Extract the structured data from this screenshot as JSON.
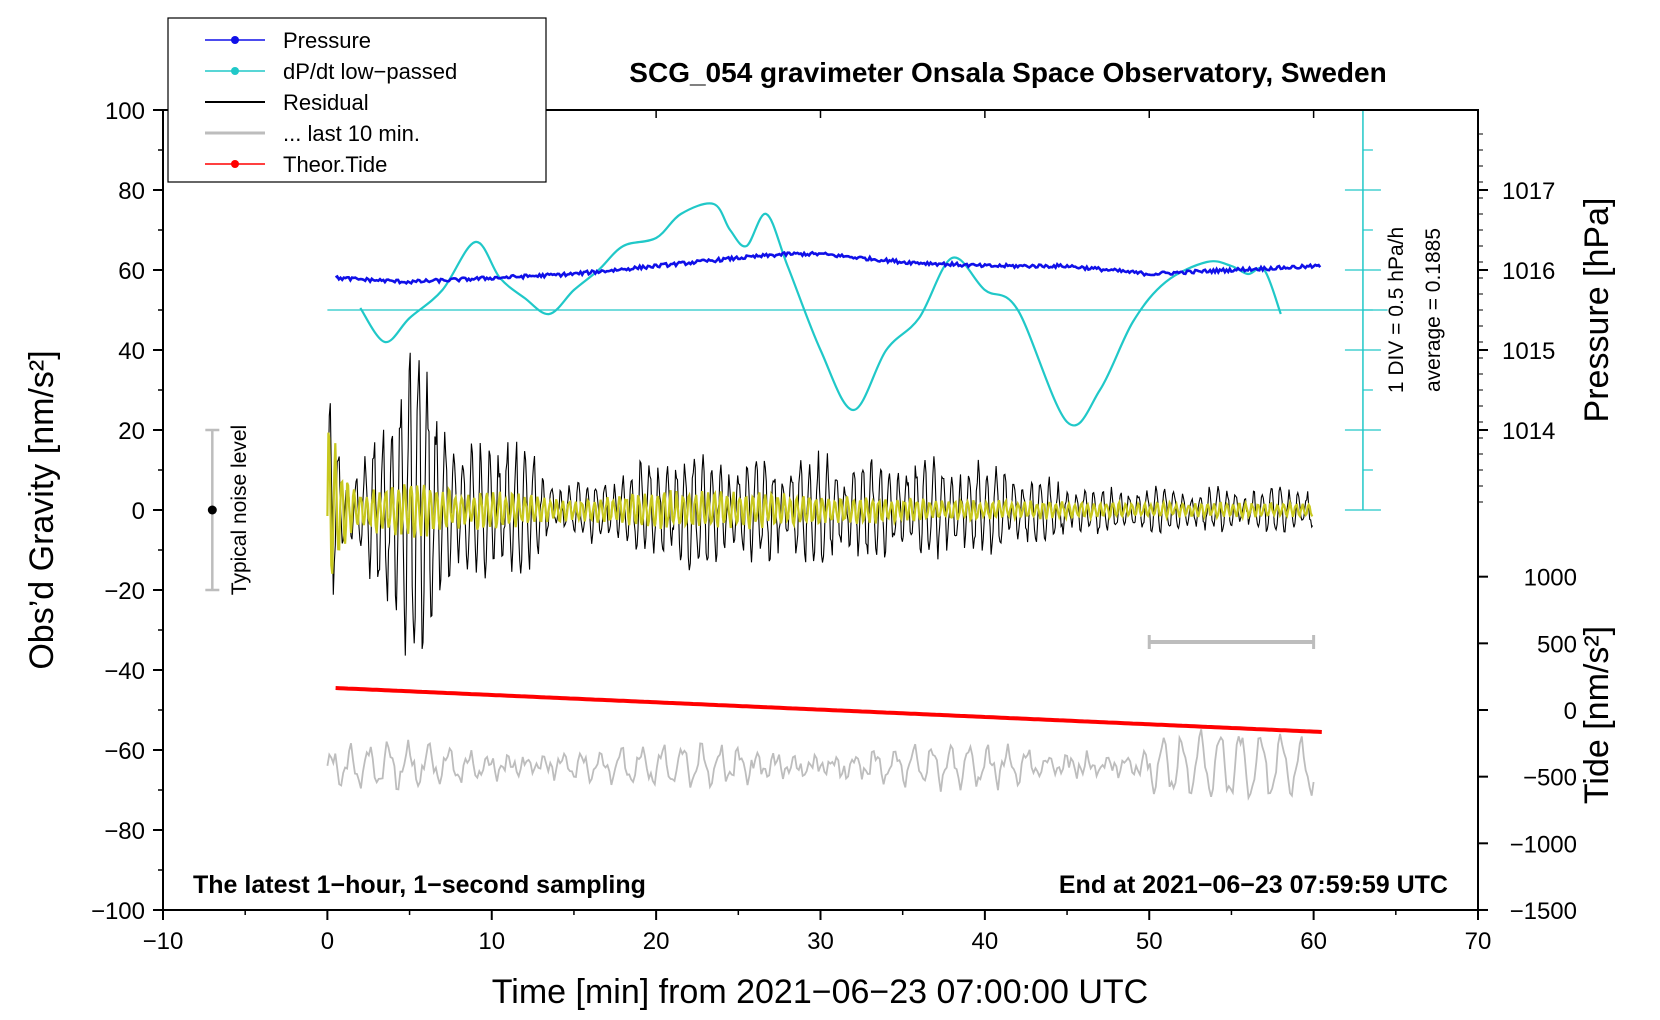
{
  "chart_data": {
    "type": "line",
    "title": "SCG_054 gravimeter Onsala Space Observatory, Sweden",
    "xlabel": "Time [min] from 2021−06−23 07:00:00 UTC",
    "ylabel": "Obs’d Gravity [nm/s²]",
    "ylabel_right_top": "Pressure [hPa]",
    "ylabel_right_bottom": "Tide [nm/s²]",
    "xlim": [
      -10,
      70
    ],
    "ylim": [
      -100,
      100
    ],
    "x_ticks": [
      "−10",
      "0",
      "10",
      "20",
      "30",
      "40",
      "50",
      "60",
      "70"
    ],
    "x_tick_values": [
      -10,
      0,
      10,
      20,
      30,
      40,
      50,
      60,
      70
    ],
    "y_ticks": [
      "−100",
      "−80",
      "−60",
      "−40",
      "−20",
      "0",
      "20",
      "40",
      "60",
      "80",
      "100"
    ],
    "y_tick_values": [
      -100,
      -80,
      -60,
      -40,
      -20,
      0,
      20,
      40,
      60,
      80,
      100
    ],
    "pressure_ticks": [
      "1014",
      "1015",
      "1016",
      "1017"
    ],
    "pressure_tick_values": [
      1014,
      1015,
      1016,
      1017
    ],
    "pressure_axis_map": {
      "gravity_at_1014": 20,
      "gravity_per_hPa": 20
    },
    "tide_ticks": [
      "1000",
      "500",
      "0",
      "−500",
      "−1000",
      "−1500"
    ],
    "tide_tick_values": [
      1000,
      500,
      0,
      -500,
      -1000,
      -1500
    ],
    "tide_axis_map": {
      "gravity_at_0": -50,
      "gravity_per_1000": 33.33
    },
    "legend": [
      {
        "label": "Pressure",
        "color": "#1010e8",
        "marker": true
      },
      {
        "label": "dP/dt low−passed",
        "color": "#20c8c8",
        "marker": true
      },
      {
        "label": "Residual",
        "color": "#000000",
        "marker": false
      },
      {
        "label": "... last 10 min.",
        "color": "#bdbdbd",
        "marker": false
      },
      {
        "label": "Theor.Tide",
        "color": "#ff0000",
        "marker": true
      }
    ],
    "annotations": {
      "bottom_left": "The latest 1−hour, 1−second sampling",
      "bottom_right": "End at 2021−06−23 07:59:59 UTC",
      "noise_label": "Typical noise level",
      "div_label": "1 DIV = 0.5 hPa/h",
      "average_label": "average = 0.1885"
    },
    "noise_bar": {
      "x": -7,
      "y_min": -20,
      "y_max": 20,
      "center": 0
    },
    "dpdt_baseline_gravity": 50,
    "dpdt_scale_bar": {
      "x": 63,
      "y_min": 0,
      "y_max": 100
    },
    "gray_scale_bar": {
      "x_min": 50,
      "x_max": 60,
      "y": -33
    },
    "series": [
      {
        "name": "Pressure",
        "unit": "hPa",
        "color": "#1010e8",
        "x": [
          0.5,
          5,
          10,
          15,
          20,
          25,
          28,
          30,
          35,
          40,
          45,
          50,
          55,
          60.5
        ],
        "values": [
          1015.9,
          1015.85,
          1015.9,
          1015.95,
          1016.05,
          1016.15,
          1016.2,
          1016.2,
          1016.1,
          1016.05,
          1016.05,
          1015.95,
          1016.0,
          1016.05
        ]
      },
      {
        "name": "dP/dt low−passed",
        "unit": "gravity-equivalent",
        "color": "#20c8c8",
        "x": [
          2,
          3.5,
          5,
          7,
          9,
          10.5,
          12,
          13.5,
          15,
          16.5,
          18,
          20,
          21.5,
          23.5,
          24.5,
          25.5,
          26.7,
          28,
          30,
          32,
          34,
          36,
          38,
          40,
          42,
          45,
          47,
          49,
          51,
          53.5,
          55,
          56,
          57,
          58
        ],
        "values": [
          50.5,
          42,
          48,
          55,
          67,
          58,
          53,
          49,
          55,
          60,
          66,
          68,
          74,
          76.5,
          70,
          66,
          74,
          61,
          40,
          25,
          40,
          48,
          63,
          55,
          50,
          22,
          30,
          47,
          57,
          62,
          61,
          59,
          60,
          49
        ]
      },
      {
        "name": "Residual",
        "color": "#000000",
        "x": [
          0,
          1,
          2,
          3,
          5,
          6,
          7,
          8,
          10,
          11,
          12,
          14,
          16,
          18,
          20,
          22,
          24,
          26,
          28,
          30,
          32,
          35,
          38,
          40,
          45,
          50,
          55,
          60
        ],
        "values": [
          40,
          6,
          8,
          25,
          36,
          37,
          25,
          12,
          17,
          20,
          15,
          6,
          7,
          9,
          12,
          14,
          12,
          13,
          12,
          13,
          11,
          12,
          11,
          11,
          6,
          5,
          5,
          6
        ]
      },
      {
        "name": "Residual (filtered)",
        "color": "#c8c81e",
        "x": [
          0,
          1,
          2,
          5,
          8,
          10,
          15,
          20,
          25,
          30,
          40,
          50,
          60
        ],
        "values": [
          20,
          8,
          4,
          6,
          4,
          4,
          2,
          4,
          4,
          3,
          2,
          1.5,
          1.5
        ]
      },
      {
        "name": "... last 10 min.",
        "color": "#bdbdbd",
        "x": [
          0,
          60
        ],
        "values": [
          -64,
          -64
        ]
      },
      {
        "name": "Theor.Tide",
        "unit": "nm/s²",
        "color": "#ff0000",
        "x": [
          0.5,
          60.5
        ],
        "values": [
          165,
          -165
        ]
      }
    ]
  }
}
